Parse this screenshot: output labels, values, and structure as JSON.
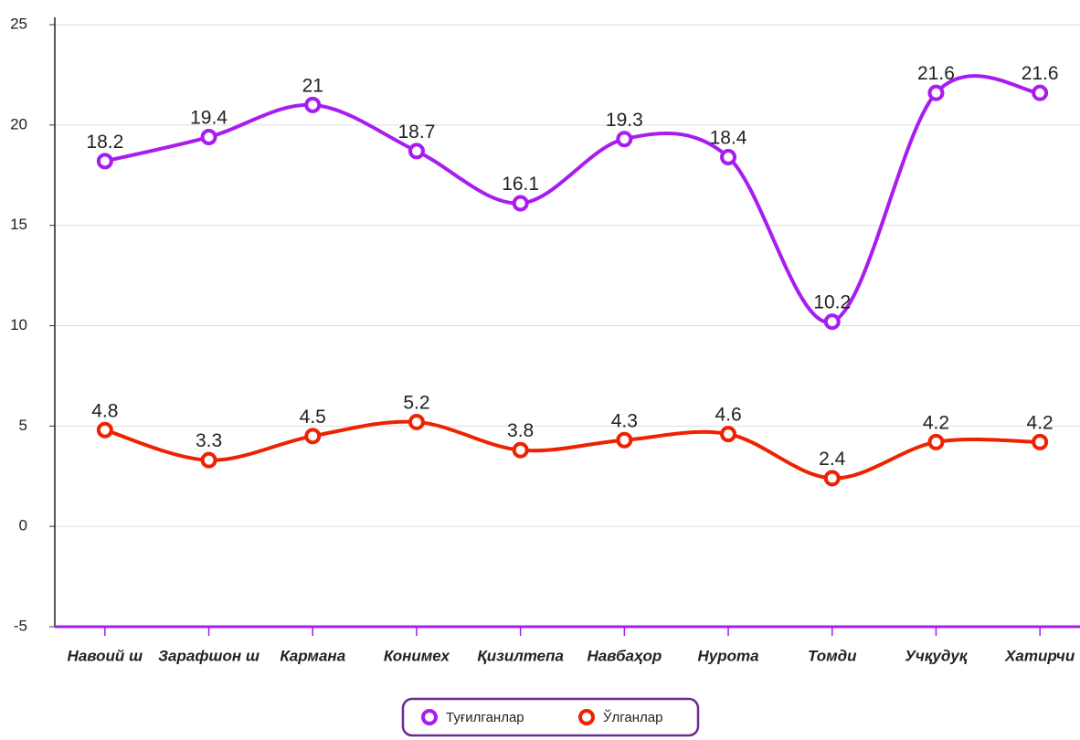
{
  "chart_data": {
    "type": "line",
    "categories": [
      "Навоий ш",
      "Зарафшон ш",
      "Кармана",
      "Конимех",
      "Қизилтепа",
      "Навбаҳор",
      "Нурота",
      "Томди",
      "Учқудуқ",
      "Хатирчи"
    ],
    "series": [
      {
        "name": "Туғилганлар",
        "color": "#a81cf0",
        "values": [
          18.2,
          19.4,
          21,
          18.7,
          16.1,
          19.3,
          18.4,
          10.2,
          21.6,
          21.6
        ]
      },
      {
        "name": "Ўлганлар",
        "color": "#ee2200",
        "values": [
          4.8,
          3.3,
          4.5,
          5.2,
          3.8,
          4.3,
          4.6,
          2.4,
          4.2,
          4.2
        ]
      }
    ],
    "ylim": [
      -5,
      25
    ],
    "yticks": [
      -5,
      0,
      5,
      10,
      15,
      20,
      25
    ],
    "grid": true,
    "smooth": true,
    "legend": "bottom"
  }
}
